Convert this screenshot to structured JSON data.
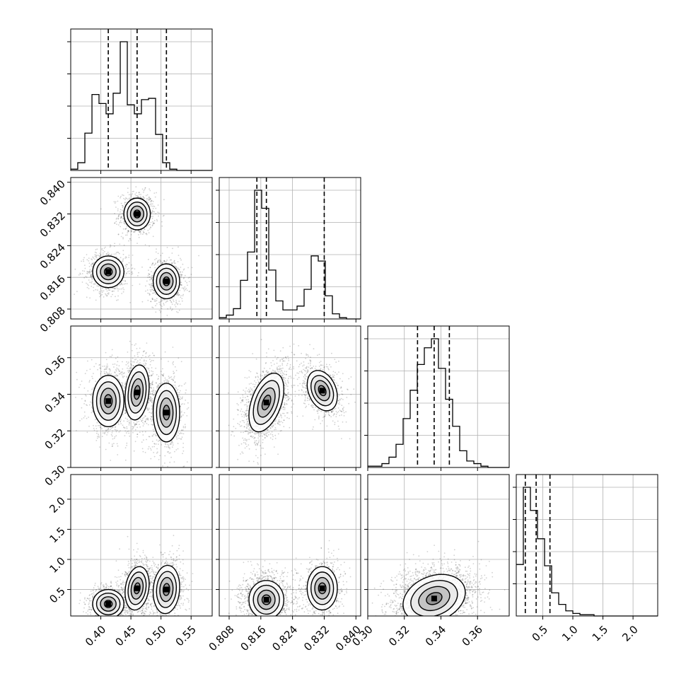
{
  "chart_data": {
    "type": "corner",
    "layout": "lower-triangle 4x4",
    "grid": true,
    "colors": {
      "line": "#000000",
      "grid": "#b0b0b0",
      "scatter": "#000000",
      "fill": "#d9d9d9"
    },
    "quantile_lines": {
      "style": "dashed",
      "color": "#000000"
    },
    "parameters": [
      {
        "range": [
          0.35,
          0.585
        ],
        "ticks": [
          0.4,
          0.45,
          0.5,
          0.55
        ],
        "tick_labels": [
          "0.40",
          "0.45",
          "0.50",
          "0.55"
        ],
        "quantiles": [
          0.4124,
          0.4603,
          0.509
        ],
        "hist": {
          "type": "step-histogram",
          "bin_edges": [
            0.35,
            0.3617,
            0.3735,
            0.3853,
            0.397,
            0.4087,
            0.4205,
            0.4323,
            0.444,
            0.4557,
            0.4675,
            0.4793,
            0.491,
            0.5027,
            0.5145,
            0.5263,
            0.538,
            0.5497,
            0.5615,
            0.5733,
            0.585
          ],
          "counts": [
            1,
            6,
            29,
            59,
            52,
            44,
            60,
            100,
            51,
            44,
            55,
            56,
            28,
            6,
            1,
            0,
            0,
            0,
            0,
            0
          ]
        }
      },
      {
        "range": [
          0.8055,
          0.8412
        ],
        "ticks": [
          0.808,
          0.816,
          0.824,
          0.832,
          0.84
        ],
        "tick_labels": [
          "0.808",
          "0.816",
          "0.824",
          "0.832",
          "0.840"
        ],
        "quantiles": [
          0.815,
          0.8174,
          0.832
        ],
        "hist": {
          "type": "step-histogram",
          "bin_edges": [
            0.8055,
            0.80729,
            0.80907,
            0.81086,
            0.81264,
            0.81443,
            0.81621,
            0.818,
            0.81978,
            0.82157,
            0.82335,
            0.82514,
            0.82692,
            0.82871,
            0.83049,
            0.83228,
            0.83406,
            0.83585,
            0.83763,
            0.83942,
            0.8412
          ],
          "counts": [
            1,
            3,
            8,
            30,
            52,
            100,
            86,
            38,
            14,
            7,
            7,
            10,
            23,
            49,
            45,
            18,
            4,
            1,
            0,
            0
          ]
        }
      },
      {
        "range": [
          0.3,
          0.3773
        ],
        "ticks": [
          0.3,
          0.32,
          0.34,
          0.36
        ],
        "tick_labels": [
          "0.30",
          "0.32",
          "0.34",
          "0.36"
        ],
        "quantiles": [
          0.3272,
          0.3363,
          0.3446
        ],
        "hist": {
          "type": "step-histogram",
          "bin_edges": [
            0.3,
            0.30387,
            0.30773,
            0.3116,
            0.31546,
            0.31933,
            0.32319,
            0.32706,
            0.33092,
            0.33479,
            0.33865,
            0.34252,
            0.34638,
            0.35025,
            0.35411,
            0.35798,
            0.36184,
            0.36571,
            0.36957,
            0.37344,
            0.3773
          ],
          "counts": [
            1,
            1,
            3,
            8,
            18,
            38,
            60,
            80,
            93,
            100,
            77,
            53,
            32,
            13,
            5,
            3,
            1,
            0,
            0,
            0
          ]
        }
      },
      {
        "range": [
          0.06,
          2.41
        ],
        "ticks": [
          0.5,
          1.0,
          1.5,
          2.0
        ],
        "tick_labels": [
          "0.5",
          "1.0",
          "1.5",
          "2.0"
        ],
        "quantiles": [
          0.21,
          0.39,
          0.62
        ],
        "hist": {
          "type": "step-histogram",
          "bin_edges": [
            0.06,
            0.1775,
            0.295,
            0.4125,
            0.53,
            0.6475,
            0.765,
            0.8825,
            1.0,
            1.1175,
            1.235,
            1.3525,
            1.47,
            1.5875,
            1.705,
            1.8225,
            1.94,
            2.0575,
            2.175,
            2.2925,
            2.41
          ],
          "counts": [
            40,
            100,
            82,
            60,
            39,
            18,
            9,
            4,
            2,
            1,
            1,
            0,
            0,
            0,
            0,
            0,
            0,
            0,
            0,
            0
          ]
        }
      }
    ],
    "panels_2d": [
      {
        "row": 1,
        "col": 0,
        "clusters": [
          {
            "center": [
              0.4603,
              0.832
            ],
            "sigma": [
              0.011,
              0.002
            ],
            "rho": 0.0,
            "weight": 1
          },
          {
            "center": [
              0.4124,
              0.8174
            ],
            "sigma": [
              0.013,
              0.002
            ],
            "rho": 0.0,
            "weight": 1
          },
          {
            "center": [
              0.509,
              0.815
            ],
            "sigma": [
              0.011,
              0.0022
            ],
            "rho": 0.0,
            "weight": 1
          }
        ]
      },
      {
        "row": 2,
        "col": 0,
        "clusters": [
          {
            "center": [
              0.4124,
              0.3363
            ],
            "sigma": [
              0.013,
              0.007
            ],
            "rho": 0.0,
            "weight": 1
          },
          {
            "center": [
              0.4603,
              0.341
            ],
            "sigma": [
              0.01,
              0.0075
            ],
            "rho": 0.2,
            "weight": 1
          },
          {
            "center": [
              0.509,
              0.33
            ],
            "sigma": [
              0.011,
              0.008
            ],
            "rho": 0.0,
            "weight": 1
          }
        ]
      },
      {
        "row": 2,
        "col": 1,
        "clusters": [
          {
            "center": [
              0.8174,
              0.3355
            ],
            "sigma": [
              0.0022,
              0.008
            ],
            "rho": 0.45,
            "weight": 2
          },
          {
            "center": [
              0.8315,
              0.342
            ],
            "sigma": [
              0.0019,
              0.0055
            ],
            "rho": -0.3,
            "weight": 1
          }
        ]
      },
      {
        "row": 3,
        "col": 0,
        "clusters": [
          {
            "center": [
              0.4124,
              0.26
            ],
            "sigma": [
              0.013,
              0.12
            ],
            "rho": 0.0,
            "weight": 1
          },
          {
            "center": [
              0.4603,
              0.52
            ],
            "sigma": [
              0.01,
              0.18
            ],
            "rho": 0.2,
            "weight": 1
          },
          {
            "center": [
              0.509,
              0.5
            ],
            "sigma": [
              0.011,
              0.2
            ],
            "rho": 0.1,
            "weight": 1
          }
        ]
      },
      {
        "row": 3,
        "col": 1,
        "clusters": [
          {
            "center": [
              0.8174,
              0.33
            ],
            "sigma": [
              0.0022,
              0.16
            ],
            "rho": 0.0,
            "weight": 2
          },
          {
            "center": [
              0.8315,
              0.52
            ],
            "sigma": [
              0.0019,
              0.18
            ],
            "rho": 0.0,
            "weight": 1
          }
        ]
      },
      {
        "row": 3,
        "col": 2,
        "clusters": [
          {
            "center": [
              0.3363,
              0.35
            ],
            "sigma": [
              0.0085,
              0.2
            ],
            "rho": 0.25,
            "weight": 1
          }
        ]
      }
    ]
  }
}
